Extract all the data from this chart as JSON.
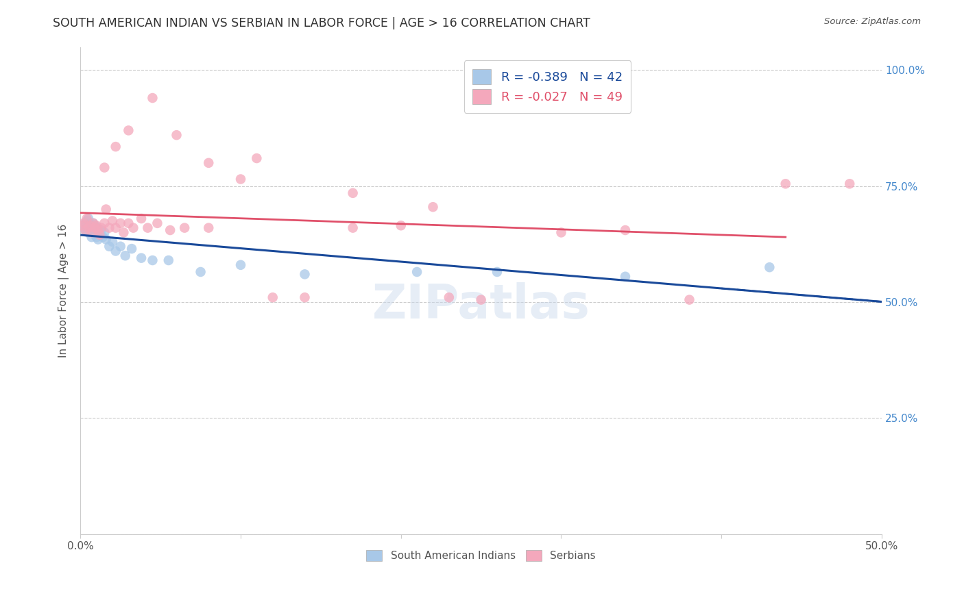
{
  "title": "SOUTH AMERICAN INDIAN VS SERBIAN IN LABOR FORCE | AGE > 16 CORRELATION CHART",
  "source": "Source: ZipAtlas.com",
  "ylabel": "In Labor Force | Age > 16",
  "xlim": [
    0.0,
    0.5
  ],
  "ylim": [
    0.0,
    1.05
  ],
  "yticks": [
    0.0,
    0.25,
    0.5,
    0.75,
    1.0
  ],
  "ytick_labels": [
    "",
    "25.0%",
    "50.0%",
    "75.0%",
    "100.0%"
  ],
  "xtick_positions": [
    0.0,
    0.1,
    0.2,
    0.3,
    0.4,
    0.5
  ],
  "xtick_labels_visible": [
    "0.0%",
    "",
    "",
    "",
    "",
    "50.0%"
  ],
  "legend_r_blue": "R = -0.389",
  "legend_n_blue": "N = 42",
  "legend_r_pink": "R = -0.027",
  "legend_n_pink": "N = 49",
  "blue_color": "#A8C8E8",
  "pink_color": "#F4A8BC",
  "blue_line_color": "#1A4A9A",
  "pink_line_color": "#E0506A",
  "watermark": "ZIPatlas",
  "label_blue": "South American Indians",
  "label_pink": "Serbians",
  "blue_x": [
    0.001,
    0.002,
    0.003,
    0.003,
    0.004,
    0.004,
    0.005,
    0.005,
    0.005,
    0.006,
    0.006,
    0.007,
    0.007,
    0.008,
    0.008,
    0.009,
    0.009,
    0.01,
    0.01,
    0.011,
    0.011,
    0.012,
    0.013,
    0.014,
    0.015,
    0.016,
    0.018,
    0.02,
    0.022,
    0.025,
    0.028,
    0.032,
    0.038,
    0.045,
    0.055,
    0.075,
    0.1,
    0.14,
    0.21,
    0.26,
    0.34,
    0.43
  ],
  "blue_y": [
    0.665,
    0.66,
    0.67,
    0.655,
    0.675,
    0.66,
    0.68,
    0.665,
    0.65,
    0.67,
    0.655,
    0.66,
    0.64,
    0.67,
    0.65,
    0.665,
    0.645,
    0.66,
    0.64,
    0.655,
    0.635,
    0.645,
    0.655,
    0.64,
    0.65,
    0.635,
    0.62,
    0.63,
    0.61,
    0.62,
    0.6,
    0.615,
    0.595,
    0.59,
    0.59,
    0.565,
    0.58,
    0.56,
    0.565,
    0.565,
    0.555,
    0.575
  ],
  "pink_x": [
    0.001,
    0.002,
    0.003,
    0.004,
    0.005,
    0.006,
    0.007,
    0.008,
    0.009,
    0.01,
    0.011,
    0.012,
    0.013,
    0.015,
    0.016,
    0.018,
    0.02,
    0.022,
    0.025,
    0.027,
    0.03,
    0.033,
    0.038,
    0.042,
    0.048,
    0.056,
    0.065,
    0.08,
    0.1,
    0.12,
    0.14,
    0.17,
    0.2,
    0.23,
    0.25,
    0.3,
    0.34,
    0.38,
    0.44,
    0.48,
    0.015,
    0.022,
    0.03,
    0.045,
    0.06,
    0.08,
    0.11,
    0.17,
    0.22
  ],
  "pink_y": [
    0.665,
    0.67,
    0.655,
    0.68,
    0.66,
    0.665,
    0.65,
    0.67,
    0.66,
    0.665,
    0.655,
    0.645,
    0.66,
    0.67,
    0.7,
    0.66,
    0.675,
    0.66,
    0.67,
    0.65,
    0.67,
    0.66,
    0.68,
    0.66,
    0.67,
    0.655,
    0.66,
    0.66,
    0.765,
    0.51,
    0.51,
    0.66,
    0.665,
    0.51,
    0.505,
    0.65,
    0.655,
    0.505,
    0.755,
    0.755,
    0.79,
    0.835,
    0.87,
    0.94,
    0.86,
    0.8,
    0.81,
    0.735,
    0.705
  ],
  "title_fontsize": 12.5,
  "axis_label_fontsize": 11,
  "tick_fontsize": 11,
  "legend_fontsize": 13
}
